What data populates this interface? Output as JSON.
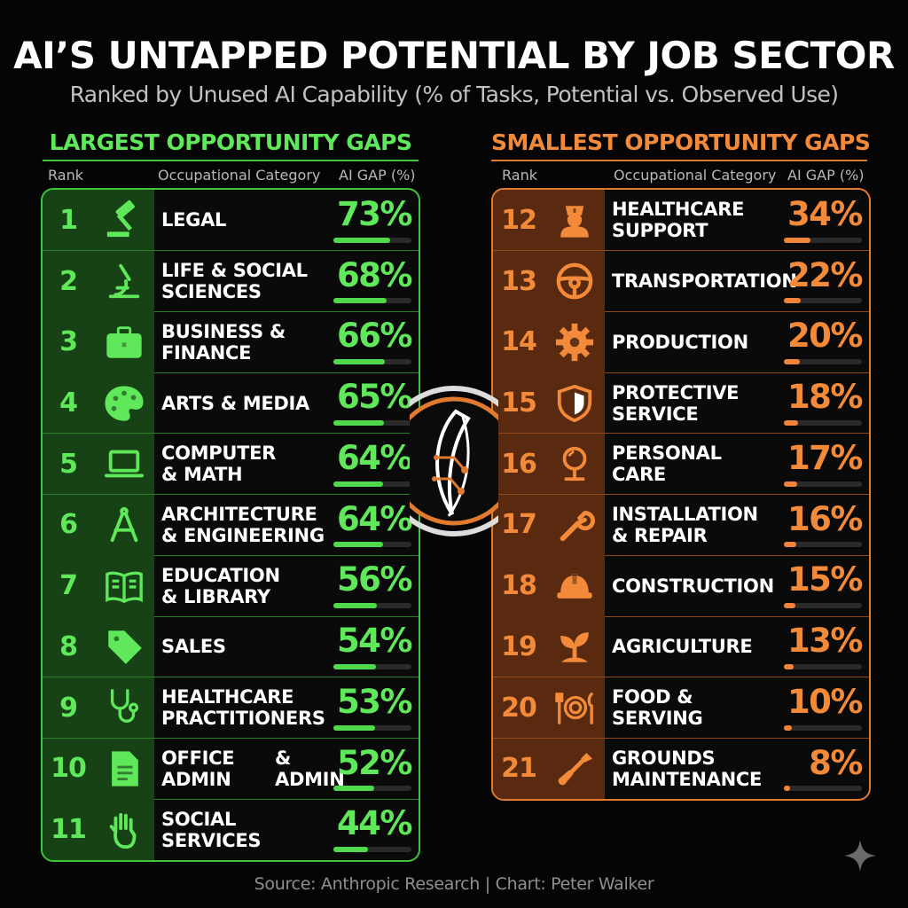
{
  "title": "AI’S UNTAPPED POTENTIAL BY JOB SECTOR",
  "subtitle": "Ranked by Unused AI Capability (% of Tasks, Potential vs. Observed Use)",
  "source": "Source: Anthropic Research | Chart: Peter Walker",
  "colors": {
    "green": "#5fe85a",
    "orange": "#f38a3a",
    "background": "#050505"
  },
  "chart_data": {
    "type": "table",
    "columns": [
      "Rank",
      "Occupational Category",
      "AI GAP (%)"
    ],
    "left_panel": {
      "heading": "LARGEST OPPORTUNITY GAPS",
      "color": "#5fe85a",
      "rows": [
        {
          "rank": "1",
          "category": "LEGAL",
          "gap": 73,
          "gap_label": "73%",
          "icon": "gavel-icon"
        },
        {
          "rank": "2",
          "category": "LIFE & SOCIAL\nSCIENCES",
          "gap": 68,
          "gap_label": "68%",
          "icon": "microscope-icon"
        },
        {
          "rank": "3",
          "category": "BUSINESS &\nFINANCE",
          "gap": 66,
          "gap_label": "66%",
          "icon": "briefcase-icon"
        },
        {
          "rank": "4",
          "category": "ARTS & MEDIA",
          "gap": 65,
          "gap_label": "65%",
          "icon": "palette-icon"
        },
        {
          "rank": "5",
          "category": "COMPUTER\n& MATH",
          "gap": 64,
          "gap_label": "64%",
          "icon": "laptop-icon"
        },
        {
          "rank": "6",
          "category": "ARCHITECTURE\n& ENGINEERING",
          "gap": 64,
          "gap_label": "64%",
          "icon": "compass-icon"
        },
        {
          "rank": "7",
          "category": "EDUCATION\n& LIBRARY",
          "gap": 56,
          "gap_label": "56%",
          "icon": "book-icon"
        },
        {
          "rank": "8",
          "category": "SALES",
          "gap": 54,
          "gap_label": "54%",
          "icon": "tag-icon"
        },
        {
          "rank": "9",
          "category": "HEALTHCARE\nPRACTITIONERS",
          "gap": 53,
          "gap_label": "53%",
          "icon": "stethoscope-icon"
        },
        {
          "rank": "10",
          "category": "OFFICE\nADMIN",
          "category_extra": "& ADMIN",
          "gap": 52,
          "gap_label": "52%",
          "icon": "document-icon"
        },
        {
          "rank": "11",
          "category": "SOCIAL\nSERVICES",
          "gap": 44,
          "gap_label": "44%",
          "icon": "hand-icon"
        }
      ]
    },
    "right_panel": {
      "heading": "SMALLEST OPPORTUNITY GAPS",
      "color": "#f38a3a",
      "rows": [
        {
          "rank": "12",
          "category": "HEALTHCARE\nSUPPORT",
          "gap": 34,
          "gap_label": "34%",
          "icon": "nurse-icon"
        },
        {
          "rank": "13",
          "category": "TRANSPORTATION",
          "gap": 22,
          "gap_label": "22%",
          "icon": "steering-wheel-icon"
        },
        {
          "rank": "14",
          "category": "PRODUCTION",
          "gap": 20,
          "gap_label": "20%",
          "icon": "gear-icon"
        },
        {
          "rank": "15",
          "category": "PROTECTIVE\nSERVICE",
          "gap": 18,
          "gap_label": "18%",
          "icon": "shield-icon"
        },
        {
          "rank": "16",
          "category": "PERSONAL\nCARE",
          "gap": 17,
          "gap_label": "17%",
          "icon": "mirror-icon"
        },
        {
          "rank": "17",
          "category": "INSTALLATION\n& REPAIR",
          "gap": 16,
          "gap_label": "16%",
          "icon": "wrench-icon"
        },
        {
          "rank": "18",
          "category": "CONSTRUCTION",
          "gap": 15,
          "gap_label": "15%",
          "icon": "hard-hat-icon"
        },
        {
          "rank": "19",
          "category": "AGRICULTURE",
          "gap": 13,
          "gap_label": "13%",
          "icon": "sprout-icon"
        },
        {
          "rank": "20",
          "category": "FOOD &\nSERVING",
          "gap": 10,
          "gap_label": "10%",
          "icon": "plate-icon"
        },
        {
          "rank": "21",
          "category": "GROUNDS\nMAINTENANCE",
          "gap": 8,
          "gap_label": "8%",
          "icon": "shovel-icon"
        }
      ]
    },
    "bar_max": 100
  }
}
